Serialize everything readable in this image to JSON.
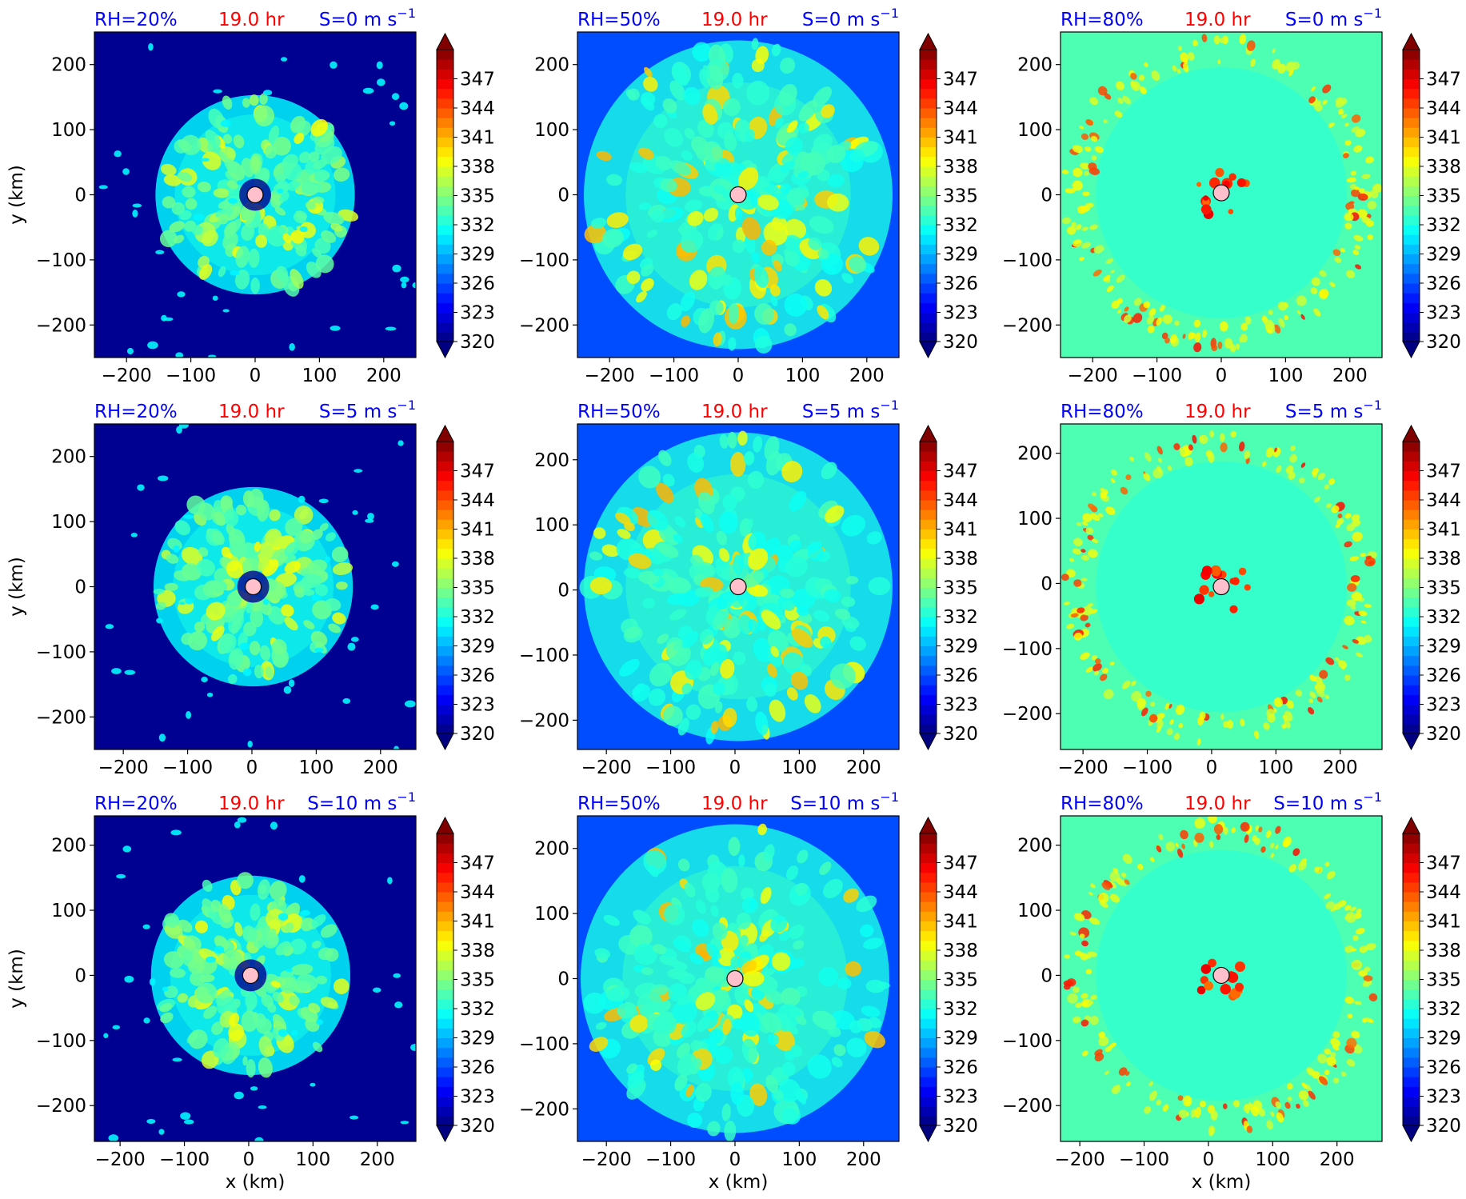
{
  "chart_data": {
    "type": "heatmap",
    "variable_colorbar": {
      "ticks": [
        320,
        323,
        326,
        329,
        332,
        335,
        338,
        341,
        344,
        347
      ],
      "range": [
        320,
        350
      ],
      "extend": "both",
      "colormap": "jet"
    },
    "x_axis": {
      "ticks": [
        -200,
        -100,
        0,
        100,
        200
      ],
      "tick_labels": [
        "−200",
        "−100",
        "0",
        "100",
        "200"
      ],
      "label": "x (km)"
    },
    "y_axis": {
      "ticks": [
        -200,
        -100,
        0,
        100,
        200
      ],
      "tick_labels": [
        "−200",
        "−100",
        "0",
        "100",
        "200"
      ],
      "label": "y (km)"
    },
    "panels": [
      {
        "rh_label": "RH=20%",
        "time_label": "19.0 hr",
        "shear_prefix": "S=0 m s",
        "shear_sup": "−1",
        "xlim": [
          -250,
          250
        ],
        "ylim": [
          -250,
          250
        ],
        "center": [
          0,
          0
        ],
        "background_value": 320.5,
        "core_value": 331,
        "ring_value": 333,
        "hot_value": 336
      },
      {
        "rh_label": "RH=50%",
        "time_label": "19.0 hr",
        "shear_prefix": "S=0 m s",
        "shear_sup": "−1",
        "xlim": [
          -250,
          250
        ],
        "ylim": [
          -250,
          250
        ],
        "center": [
          0,
          0
        ],
        "background_value": 326,
        "core_value": 332,
        "ring_value": 331.5,
        "hot_value": 338
      },
      {
        "rh_label": "RH=80%",
        "time_label": "19.0 hr",
        "shear_prefix": "S=0 m s",
        "shear_sup": "−1",
        "xlim": [
          -250,
          250
        ],
        "ylim": [
          -250,
          250
        ],
        "center": [
          0,
          3
        ],
        "background_value": 333.5,
        "core_value": 332.5,
        "ring_value": 337,
        "hot_value": 343
      },
      {
        "rh_label": "RH=20%",
        "time_label": "19.0 hr",
        "shear_prefix": "S=5 m s",
        "shear_sup": "−1",
        "xlim": [
          -245,
          255
        ],
        "ylim": [
          -250,
          250
        ],
        "center": [
          2,
          0
        ],
        "background_value": 320.5,
        "core_value": 331,
        "ring_value": 333,
        "hot_value": 336
      },
      {
        "rh_label": "RH=50%",
        "time_label": "19.0 hr",
        "shear_prefix": "S=5 m s",
        "shear_sup": "−1",
        "xlim": [
          -245,
          255
        ],
        "ylim": [
          -245,
          255
        ],
        "center": [
          5,
          5
        ],
        "background_value": 326,
        "core_value": 332,
        "ring_value": 331.5,
        "hot_value": 338
      },
      {
        "rh_label": "RH=80%",
        "time_label": "19.0 hr",
        "shear_prefix": "S=5 m s",
        "shear_sup": "−1",
        "xlim": [
          -235,
          265
        ],
        "ylim": [
          -255,
          245
        ],
        "center": [
          15,
          -5
        ],
        "background_value": 333.5,
        "core_value": 332.5,
        "ring_value": 337,
        "hot_value": 343
      },
      {
        "rh_label": "RH=20%",
        "time_label": "19.0 hr",
        "shear_prefix": "S=10 m s",
        "shear_sup": "−1",
        "xlim": [
          -240,
          260
        ],
        "ylim": [
          -255,
          245
        ],
        "center": [
          3,
          0
        ],
        "background_value": 320.5,
        "core_value": 331,
        "ring_value": 333,
        "hot_value": 336
      },
      {
        "rh_label": "RH=50%",
        "time_label": "19.0 hr",
        "shear_prefix": "S=10 m s",
        "shear_sup": "−1",
        "xlim": [
          -245,
          255
        ],
        "ylim": [
          -250,
          250
        ],
        "center": [
          0,
          0
        ],
        "background_value": 326,
        "core_value": 332,
        "ring_value": 331.5,
        "hot_value": 338
      },
      {
        "rh_label": "RH=80%",
        "time_label": "19.0 hr",
        "shear_prefix": "S=10 m s",
        "shear_sup": "−1",
        "xlim": [
          -230,
          270
        ],
        "ylim": [
          -255,
          245
        ],
        "center": [
          20,
          0
        ],
        "background_value": 333.5,
        "core_value": 332.5,
        "ring_value": 337,
        "hot_value": 343
      }
    ]
  },
  "colors": {
    "rh": "#0000ff",
    "time": "#ff0000",
    "shear": "#0000ff",
    "center_marker": "#ffc0cb",
    "text": "#000000"
  }
}
